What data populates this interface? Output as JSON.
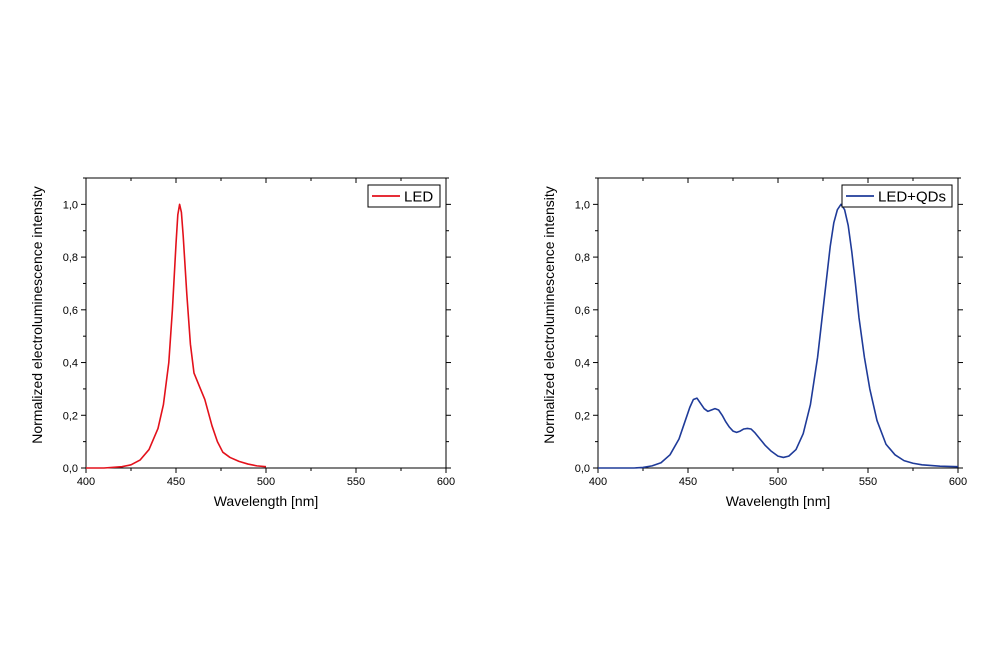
{
  "chart_data": [
    {
      "type": "line",
      "xlabel": "Wavelength [nm]",
      "ylabel": "Normalized electroluminescence intensity",
      "xlim": [
        400,
        600
      ],
      "ylim": [
        0,
        1.1
      ],
      "xticks": [
        400,
        450,
        500,
        550,
        600
      ],
      "xtick_labels": [
        "400",
        "450",
        "500",
        "550",
        "600"
      ],
      "yticks": [
        0,
        0.2,
        0.4,
        0.6,
        0.8,
        1.0
      ],
      "ytick_labels": [
        "0,0",
        "0,2",
        "0,4",
        "0,6",
        "0,8",
        "1,0"
      ],
      "legend_position": "top-right",
      "series": [
        {
          "name": "LED",
          "color": "#e3111b",
          "x": [
            400,
            410,
            420,
            425,
            430,
            435,
            440,
            443,
            446,
            448,
            450,
            451,
            452,
            453,
            454,
            456,
            458,
            460,
            463,
            466,
            470,
            473,
            476,
            480,
            485,
            490,
            495,
            500
          ],
          "y": [
            0.0,
            0.0,
            0.005,
            0.012,
            0.03,
            0.07,
            0.15,
            0.24,
            0.4,
            0.6,
            0.85,
            0.96,
            1.0,
            0.97,
            0.88,
            0.66,
            0.47,
            0.36,
            0.31,
            0.26,
            0.16,
            0.1,
            0.06,
            0.04,
            0.025,
            0.015,
            0.008,
            0.005
          ]
        }
      ]
    },
    {
      "type": "line",
      "xlabel": "Wavelength [nm]",
      "ylabel": "Normalized electroluminescence intensity",
      "xlim": [
        400,
        600
      ],
      "ylim": [
        0,
        1.1
      ],
      "xticks": [
        400,
        450,
        500,
        550,
        600
      ],
      "xtick_labels": [
        "400",
        "450",
        "500",
        "550",
        "600"
      ],
      "yticks": [
        0,
        0.2,
        0.4,
        0.6,
        0.8,
        1.0
      ],
      "ytick_labels": [
        "0,0",
        "0,2",
        "0,4",
        "0,6",
        "0,8",
        "1,0"
      ],
      "legend_position": "top-right",
      "series": [
        {
          "name": "LED+QDs",
          "color": "#1f3b99",
          "x": [
            400,
            420,
            425,
            430,
            435,
            440,
            445,
            448,
            451,
            453,
            455,
            457,
            459,
            461,
            463,
            465,
            467,
            469,
            471,
            473,
            475,
            477,
            479,
            481,
            483,
            485,
            487,
            490,
            493,
            496,
            500,
            503,
            506,
            510,
            514,
            518,
            522,
            526,
            529,
            531,
            533,
            535,
            537,
            539,
            541,
            543,
            545,
            548,
            551,
            555,
            560,
            565,
            570,
            575,
            580,
            590,
            600
          ],
          "y": [
            0.0,
            0.0,
            0.002,
            0.008,
            0.02,
            0.05,
            0.11,
            0.17,
            0.23,
            0.26,
            0.265,
            0.245,
            0.225,
            0.215,
            0.22,
            0.225,
            0.22,
            0.2,
            0.175,
            0.155,
            0.14,
            0.135,
            0.14,
            0.148,
            0.15,
            0.148,
            0.135,
            0.11,
            0.085,
            0.065,
            0.045,
            0.04,
            0.045,
            0.07,
            0.13,
            0.24,
            0.42,
            0.66,
            0.84,
            0.93,
            0.98,
            1.0,
            0.98,
            0.92,
            0.82,
            0.7,
            0.57,
            0.42,
            0.3,
            0.18,
            0.09,
            0.05,
            0.028,
            0.018,
            0.012,
            0.007,
            0.005
          ]
        }
      ]
    }
  ]
}
